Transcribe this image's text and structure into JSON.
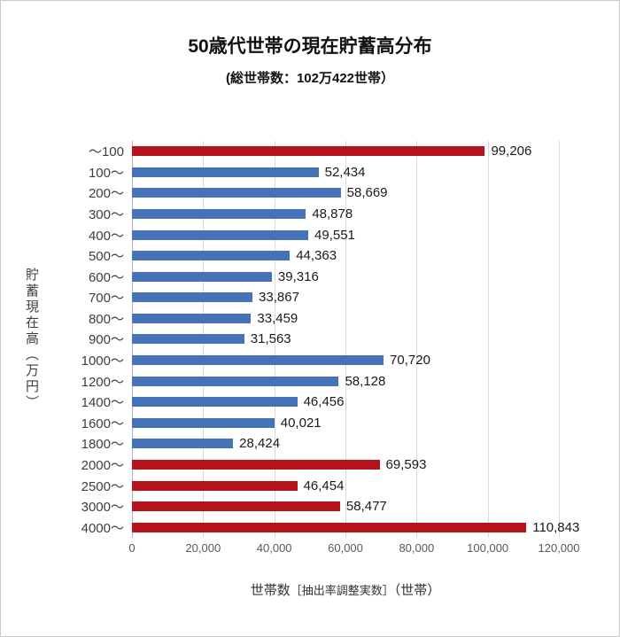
{
  "chart_data": {
    "type": "bar",
    "orientation": "horizontal",
    "title": "50歳代世帯の現在貯蓄高分布",
    "subtitle": "(総世帯数：102万422世帯）",
    "ylabel": "貯蓄現在高（万円）",
    "xlabel": "世帯数［抽出率調整実数］（世帯）",
    "xlabel_parts": [
      "世帯数",
      "［抽出率調整実数］",
      "（世帯）"
    ],
    "xlim": [
      0,
      120000
    ],
    "x_ticks": [
      0,
      20000,
      40000,
      60000,
      80000,
      100000,
      120000
    ],
    "x_tick_labels": [
      "0",
      "20,000",
      "40,000",
      "60,000",
      "80,000",
      "100,000",
      "120,000"
    ],
    "categories": [
      "～100",
      "100～",
      "200～",
      "300～",
      "400～",
      "500～",
      "600～",
      "700～",
      "800～",
      "900～",
      "1000～",
      "1200～",
      "1400～",
      "1600～",
      "1800～",
      "2000～",
      "2500～",
      "3000～",
      "4000～"
    ],
    "values": [
      99206,
      52434,
      58669,
      48878,
      49551,
      44363,
      39316,
      33867,
      33459,
      31563,
      70720,
      58128,
      46456,
      40021,
      28424,
      69593,
      46454,
      58477,
      110843
    ],
    "value_labels": [
      "99,206",
      "52,434",
      "58,669",
      "48,878",
      "49,551",
      "44,363",
      "39,316",
      "33,867",
      "33,459",
      "31,563",
      "70,720",
      "58,128",
      "46,456",
      "40,021",
      "28,424",
      "69,593",
      "46,454",
      "58,477",
      "110,843"
    ],
    "colors": [
      "red",
      "blue",
      "blue",
      "blue",
      "blue",
      "blue",
      "blue",
      "blue",
      "blue",
      "blue",
      "blue",
      "blue",
      "blue",
      "blue",
      "blue",
      "red",
      "red",
      "red",
      "red"
    ],
    "palette": {
      "red": "#b5121b",
      "blue": "#4673b8"
    },
    "grid_color": "#d9d9d9",
    "legend": "none",
    "background": "#ffffff"
  }
}
